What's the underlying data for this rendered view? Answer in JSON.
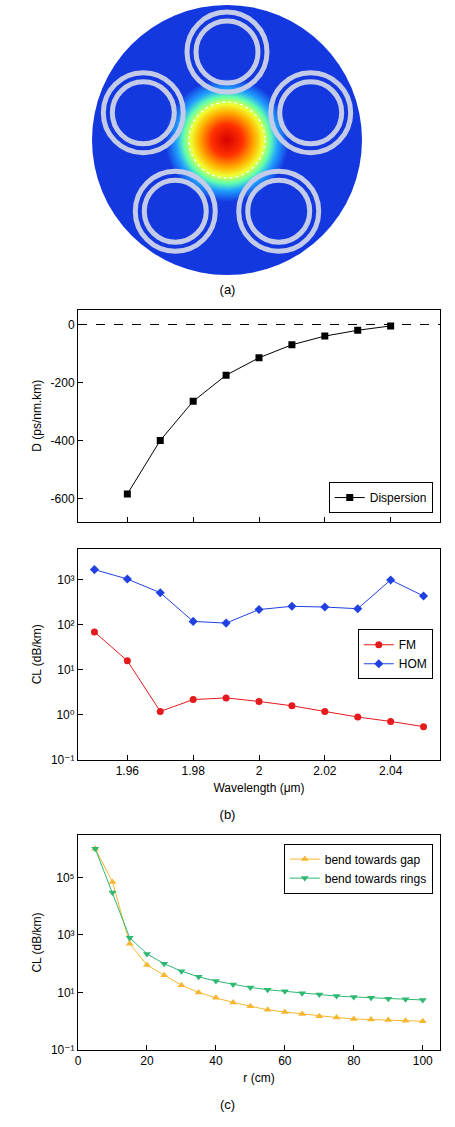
{
  "panel_labels": [
    "(a)",
    "(b)",
    "(c)"
  ],
  "chart_data": [
    {
      "type": "line",
      "y_label": "D (ps/nm.km)",
      "x": [
        1.96,
        1.97,
        1.98,
        1.99,
        2.0,
        2.01,
        2.02,
        2.03,
        2.04
      ],
      "series": [
        {
          "name": "Dispersion",
          "color": "#000000",
          "marker": "square",
          "line_style": "solid",
          "values": [
            -585,
            -400,
            -265,
            -175,
            -115,
            -70,
            -40,
            -20,
            -5
          ]
        }
      ],
      "reference_line": 0,
      "xlim": [
        1.945,
        2.055
      ],
      "xticks": [
        1.96,
        1.98,
        2,
        2.02,
        2.04
      ],
      "ylim": [
        -680,
        50
      ],
      "yticks": [
        -600,
        -400,
        -200,
        0
      ],
      "legend": "lower right",
      "tick_labels": "y"
    },
    {
      "type": "line",
      "x_label": "Wavelength (μm)",
      "y_label": "CL (dB/km)",
      "x": [
        1.95,
        1.96,
        1.97,
        1.98,
        1.99,
        2.0,
        2.01,
        2.02,
        2.03,
        2.04,
        2.05
      ],
      "series": [
        {
          "name": "FM",
          "color": "#e41a1c",
          "marker": "circle",
          "line_style": "solid",
          "values": [
            70,
            16,
            1.2,
            2.2,
            2.4,
            2.0,
            1.6,
            1.2,
            0.9,
            0.72,
            0.55
          ]
        },
        {
          "name": "HOM",
          "color": "#2040e0",
          "marker": "diamond",
          "line_style": "solid",
          "values": [
            1700,
            1050,
            520,
            120,
            110,
            220,
            260,
            250,
            230,
            1000,
            440
          ]
        }
      ],
      "log": "y",
      "xlim": [
        1.945,
        2.055
      ],
      "xticks": [
        1.96,
        1.98,
        2,
        2.02,
        2.04
      ],
      "ylim": [
        0.1,
        5000
      ],
      "yticks": [
        {
          "value": 0.1,
          "label": "10⁻¹"
        },
        {
          "value": 1,
          "label": "10⁰"
        },
        {
          "value": 10,
          "label": "10¹"
        },
        {
          "value": 100,
          "label": "10²"
        },
        {
          "value": 1000,
          "label": "10³"
        }
      ],
      "legend": "right"
    },
    {
      "type": "line",
      "x_label": "r (cm)",
      "y_label": "CL (dB/km)",
      "x": [
        5,
        10,
        15,
        20,
        25,
        30,
        35,
        40,
        45,
        50,
        55,
        60,
        65,
        70,
        75,
        80,
        85,
        90,
        95,
        100
      ],
      "series": [
        {
          "name": "bend towards gap",
          "color": "#f5b731",
          "marker": "triangle-up",
          "line_style": "solid",
          "values": [
            1000000,
            70000,
            500,
            90,
            40,
            18,
            10,
            6.5,
            4.5,
            3.3,
            2.5,
            2.1,
            1.8,
            1.5,
            1.35,
            1.2,
            1.15,
            1.1,
            1.05,
            1.0
          ]
        },
        {
          "name": "bend towards rings",
          "color": "#2eb872",
          "marker": "triangle-down",
          "line_style": "solid",
          "values": [
            1000000,
            30000,
            800,
            220,
            100,
            55,
            35,
            25,
            19,
            15,
            12.5,
            11,
            9.5,
            8.5,
            7.5,
            7,
            6.5,
            6,
            5.8,
            5.5
          ]
        }
      ],
      "log": "y",
      "xlim": [
        0,
        105
      ],
      "xticks": [
        0,
        20,
        40,
        60,
        80,
        100
      ],
      "ylim": [
        0.1,
        3000000
      ],
      "yticks": [
        {
          "value": 0.1,
          "label": "10⁻¹"
        },
        {
          "value": 10,
          "label": "10¹"
        },
        {
          "value": 1000,
          "label": "10³"
        },
        {
          "value": 100000,
          "label": "10⁵"
        }
      ],
      "legend": "upper right"
    }
  ]
}
